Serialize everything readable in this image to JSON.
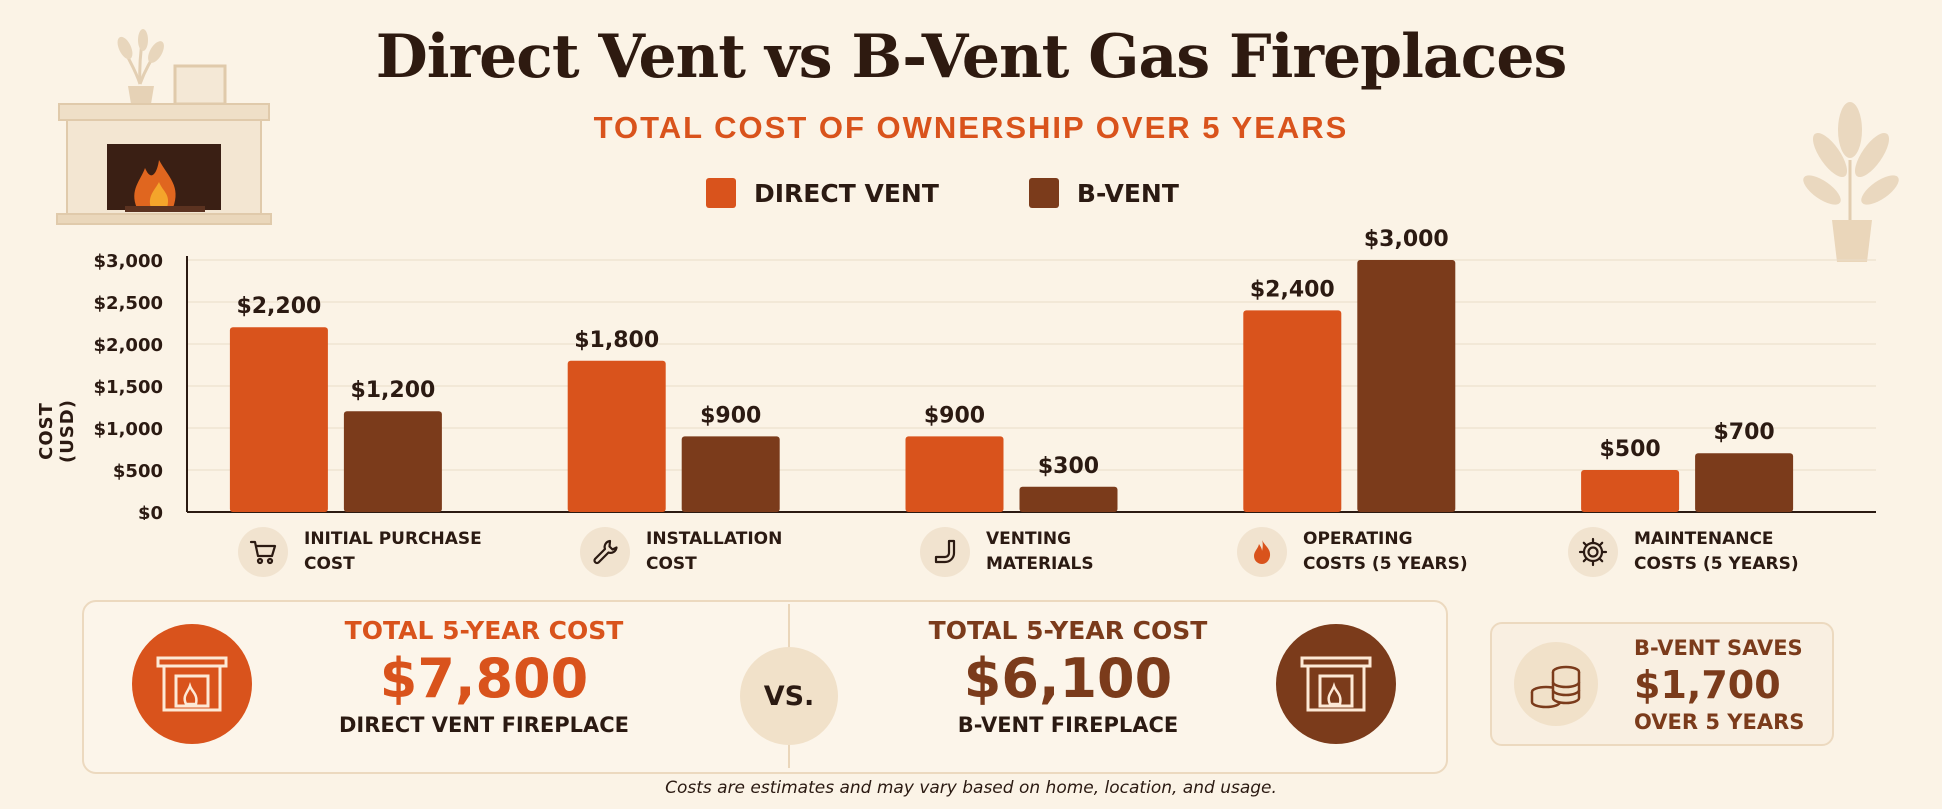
{
  "title": "Direct Vent vs B-Vent Gas Fireplaces",
  "subtitle": "TOTAL COST OF OWNERSHIP OVER 5 YEARS",
  "colors": {
    "direct_vent": "#d9531c",
    "b_vent": "#7b3b1b",
    "accent": "#d9531c",
    "background": "#fbf3e6"
  },
  "legend": [
    {
      "label": "DIRECT VENT",
      "color": "#d9531c"
    },
    {
      "label": "B-VENT",
      "color": "#7b3b1b"
    }
  ],
  "categories_display": [
    {
      "label": "INITIAL PURCHASE\nCOST",
      "icon": "shopping-cart-icon"
    },
    {
      "label": "INSTALLATION\nCOST",
      "icon": "wrench-icon"
    },
    {
      "label": "VENTING\nMATERIALS",
      "icon": "vent-pipe-icon"
    },
    {
      "label": "OPERATING\nCOSTS (5 YEARS)",
      "icon": "flame-icon"
    },
    {
      "label": "MAINTENANCE\nCOSTS (5 YEARS)",
      "icon": "gear-icon"
    }
  ],
  "chart_data": {
    "type": "bar",
    "title": "Direct Vent vs B-Vent Gas Fireplaces",
    "subtitle": "TOTAL COST OF OWNERSHIP OVER 5 YEARS",
    "ylabel": "COST (USD)",
    "xlabel": "",
    "ylim": [
      0,
      3000
    ],
    "yticks": [
      "$0",
      "$500",
      "$1,000",
      "$1,500",
      "$2,000",
      "$2,500",
      "$3,000"
    ],
    "ytick_values": [
      0,
      500,
      1000,
      1500,
      2000,
      2500,
      3000
    ],
    "grid": true,
    "legend_position": "top-center",
    "categories": [
      "INITIAL PURCHASE COST",
      "INSTALLATION COST",
      "VENTING MATERIALS",
      "OPERATING COSTS (5 YEARS)",
      "MAINTENANCE COSTS (5 YEARS)"
    ],
    "series": [
      {
        "name": "DIRECT VENT",
        "color": "#d9531c",
        "values": [
          2200,
          1800,
          900,
          2400,
          500
        ],
        "labels": [
          "$2,200",
          "$1,800",
          "$900",
          "$2,400",
          "$500"
        ]
      },
      {
        "name": "B-VENT",
        "color": "#7b3b1b",
        "values": [
          1200,
          900,
          300,
          3000,
          700
        ],
        "labels": [
          "$1,200",
          "$900",
          "$300",
          "$3,000",
          "$700"
        ]
      }
    ]
  },
  "summary": {
    "direct": {
      "heading": "TOTAL 5-YEAR COST",
      "value": "$7,800",
      "label": "DIRECT VENT FIREPLACE"
    },
    "vs": "VS.",
    "bvent": {
      "heading": "TOTAL 5-YEAR COST",
      "value": "$6,100",
      "label": "B-VENT FIREPLACE"
    },
    "savings": {
      "heading": "B-VENT SAVES",
      "value": "$1,700",
      "label": "OVER 5 YEARS"
    }
  },
  "footnote": "Costs are estimates and may vary based on home, location, and usage."
}
